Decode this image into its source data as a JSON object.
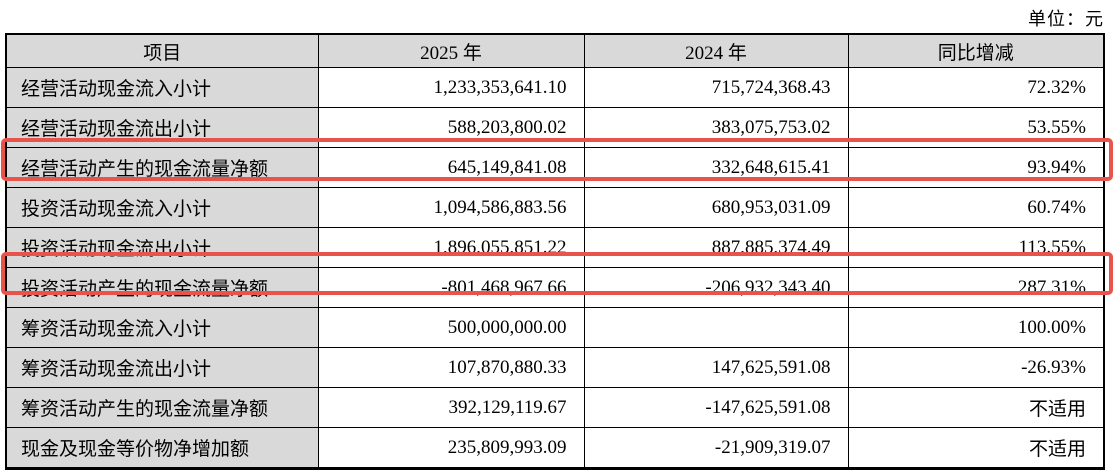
{
  "page": {
    "unit_label": "单位：元"
  },
  "colors": {
    "header_bg": "#d9d9d9",
    "item_column_bg": "#d9d9d9",
    "highlight_border": "#e8544c",
    "table_border": "#000000"
  },
  "table": {
    "headers": [
      "项目",
      "2025 年",
      "2024 年",
      "同比增减"
    ],
    "rows": [
      {
        "item": "经营活动现金流入小计",
        "y2025": "1,233,353,641.10",
        "y2024": "715,724,368.43",
        "yoy": "72.32%",
        "highlighted": false
      },
      {
        "item": "经营活动现金流出小计",
        "y2025": "588,203,800.02",
        "y2024": "383,075,753.02",
        "yoy": "53.55%",
        "highlighted": false
      },
      {
        "item": "经营活动产生的现金流量净额",
        "y2025": "645,149,841.08",
        "y2024": "332,648,615.41",
        "yoy": "93.94%",
        "highlighted": true
      },
      {
        "item": "投资活动现金流入小计",
        "y2025": "1,094,586,883.56",
        "y2024": "680,953,031.09",
        "yoy": "60.74%",
        "highlighted": false
      },
      {
        "item": "投资活动现金流出小计",
        "y2025": "1,896,055,851.22",
        "y2024": "887,885,374.49",
        "yoy": "113.55%",
        "highlighted": false
      },
      {
        "item": "投资活动产生的现金流量净额",
        "y2025": "-801,468,967.66",
        "y2024": "-206,932,343.40",
        "yoy": "287.31%",
        "highlighted": true
      },
      {
        "item": "筹资活动现金流入小计",
        "y2025": "500,000,000.00",
        "y2024": "",
        "yoy": "100.00%",
        "highlighted": false
      },
      {
        "item": "筹资活动现金流出小计",
        "y2025": "107,870,880.33",
        "y2024": "147,625,591.08",
        "yoy": "-26.93%",
        "highlighted": false
      },
      {
        "item": "筹资活动产生的现金流量净额",
        "y2025": "392,129,119.67",
        "y2024": "-147,625,591.08",
        "yoy": "不适用",
        "highlighted": false
      },
      {
        "item": "现金及现金等价物净增加额",
        "y2025": "235,809,993.09",
        "y2024": "-21,909,319.07",
        "yoy": "不适用",
        "highlighted": false
      }
    ]
  }
}
